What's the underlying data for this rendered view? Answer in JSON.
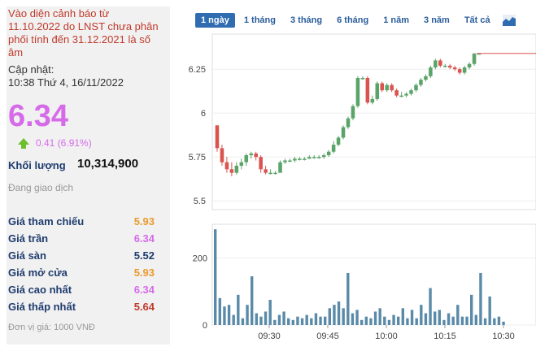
{
  "warning": "Vào diện cảnh báo từ 11.10.2022 do LNST chưa phân phối tính đến 31.12.2021 là số âm",
  "updated_label": "Cập nhật:",
  "updated_time": "10:38 Thứ 4, 16/11/2022",
  "price": "6.34",
  "change": "0.41 (6.91%)",
  "volume_label": "Khối lượng",
  "volume_value": "10,314,900",
  "status": "Đang giao dịch",
  "stats": [
    {
      "label": "Giá tham chiếu",
      "value": "5.93",
      "color": "#e89a2e"
    },
    {
      "label": "Giá trần",
      "value": "6.34",
      "color": "#d56be8"
    },
    {
      "label": "Giá sàn",
      "value": "5.52",
      "color": "#1f3c6e"
    },
    {
      "label": "Giá mở cửa",
      "value": "5.93",
      "color": "#e89a2e"
    },
    {
      "label": "Giá cao nhất",
      "value": "6.34",
      "color": "#d56be8"
    },
    {
      "label": "Giá thấp nhất",
      "value": "5.64",
      "color": "#c0392b"
    }
  ],
  "unit": "Đơn vị giá: 1000 VNĐ",
  "tabs": [
    "1 ngày",
    "1 tháng",
    "3 tháng",
    "6 tháng",
    "1 năm",
    "3 năm",
    "Tất cả"
  ],
  "active_tab": 0,
  "icon": "area-chart-icon",
  "chart_data": {
    "type": "candlestick",
    "price_axis": {
      "ticks": [
        "6.25",
        "6",
        "5.75",
        "5.5"
      ],
      "range": [
        5.45,
        6.45
      ]
    },
    "volume_axis": {
      "ticks": [
        "200",
        "0"
      ],
      "range": [
        0,
        300
      ]
    },
    "time_labels": [
      "09:30",
      "09:45",
      "10:00",
      "10:15",
      "10:30"
    ],
    "up_color": "#5aa469",
    "down_color": "#d9534f",
    "volume_color": "#5a8aa8",
    "candles": [
      [
        5.93,
        5.8,
        5.93,
        5.78
      ],
      [
        5.8,
        5.72,
        5.82,
        5.7
      ],
      [
        5.72,
        5.68,
        5.75,
        5.66
      ],
      [
        5.68,
        5.66,
        5.72,
        5.64
      ],
      [
        5.66,
        5.7,
        5.72,
        5.65
      ],
      [
        5.7,
        5.72,
        5.74,
        5.68
      ],
      [
        5.72,
        5.76,
        5.77,
        5.7
      ],
      [
        5.76,
        5.77,
        5.78,
        5.74
      ],
      [
        5.77,
        5.75,
        5.78,
        5.73
      ],
      [
        5.75,
        5.68,
        5.76,
        5.66
      ],
      [
        5.68,
        5.66,
        5.7,
        5.65
      ],
      [
        5.66,
        5.66,
        5.68,
        5.65
      ],
      [
        5.66,
        5.66,
        5.67,
        5.65
      ],
      [
        5.66,
        5.72,
        5.73,
        5.66
      ],
      [
        5.72,
        5.73,
        5.74,
        5.71
      ],
      [
        5.73,
        5.73,
        5.74,
        5.72
      ],
      [
        5.73,
        5.74,
        5.75,
        5.72
      ],
      [
        5.74,
        5.74,
        5.75,
        5.73
      ],
      [
        5.74,
        5.74,
        5.75,
        5.73
      ],
      [
        5.74,
        5.75,
        5.76,
        5.74
      ],
      [
        5.75,
        5.75,
        5.76,
        5.74
      ],
      [
        5.75,
        5.75,
        5.76,
        5.74
      ],
      [
        5.75,
        5.76,
        5.77,
        5.74
      ],
      [
        5.76,
        5.78,
        5.79,
        5.75
      ],
      [
        5.78,
        5.82,
        5.84,
        5.77
      ],
      [
        5.82,
        5.86,
        5.87,
        5.81
      ],
      [
        5.86,
        5.92,
        5.93,
        5.85
      ],
      [
        5.92,
        5.97,
        5.98,
        5.91
      ],
      [
        5.97,
        6.04,
        6.05,
        5.96
      ],
      [
        6.04,
        6.2,
        6.21,
        6.03
      ],
      [
        6.2,
        6.2,
        6.21,
        6.19
      ],
      [
        6.2,
        6.06,
        6.21,
        6.05
      ],
      [
        6.06,
        6.08,
        6.1,
        6.05
      ],
      [
        6.08,
        6.17,
        6.18,
        6.07
      ],
      [
        6.17,
        6.13,
        6.18,
        6.12
      ],
      [
        6.13,
        6.16,
        6.17,
        6.12
      ],
      [
        6.16,
        6.13,
        6.17,
        6.12
      ],
      [
        6.13,
        6.1,
        6.14,
        6.09
      ],
      [
        6.1,
        6.1,
        6.12,
        6.09
      ],
      [
        6.1,
        6.11,
        6.12,
        6.09
      ],
      [
        6.11,
        6.13,
        6.14,
        6.1
      ],
      [
        6.13,
        6.16,
        6.17,
        6.12
      ],
      [
        6.16,
        6.19,
        6.2,
        6.15
      ],
      [
        6.19,
        6.21,
        6.22,
        6.18
      ],
      [
        6.21,
        6.26,
        6.27,
        6.2
      ],
      [
        6.26,
        6.3,
        6.31,
        6.25
      ],
      [
        6.3,
        6.27,
        6.31,
        6.26
      ],
      [
        6.27,
        6.27,
        6.28,
        6.26
      ],
      [
        6.27,
        6.26,
        6.28,
        6.25
      ],
      [
        6.26,
        6.25,
        6.27,
        6.24
      ],
      [
        6.25,
        6.23,
        6.26,
        6.22
      ],
      [
        6.23,
        6.26,
        6.27,
        6.22
      ],
      [
        6.26,
        6.28,
        6.29,
        6.25
      ],
      [
        6.28,
        6.34,
        6.34,
        6.27
      ],
      [
        6.34,
        6.34,
        6.34,
        6.34
      ]
    ],
    "flat_from": 54,
    "flat_value": 6.34,
    "volumes": [
      285,
      80,
      55,
      60,
      30,
      90,
      20,
      60,
      145,
      35,
      25,
      40,
      75,
      15,
      30,
      40,
      20,
      15,
      25,
      20,
      30,
      20,
      35,
      25,
      25,
      50,
      60,
      70,
      50,
      155,
      35,
      45,
      15,
      25,
      20,
      40,
      50,
      25,
      15,
      30,
      25,
      50,
      20,
      45,
      20,
      60,
      35,
      110,
      40,
      45,
      15,
      35,
      25,
      60,
      25,
      25,
      90,
      30,
      155,
      20,
      85,
      20,
      25,
      10
    ],
    "volume_time_labels": [
      "09:30",
      "09:45",
      "10:00",
      "10:15",
      "10:30"
    ]
  }
}
